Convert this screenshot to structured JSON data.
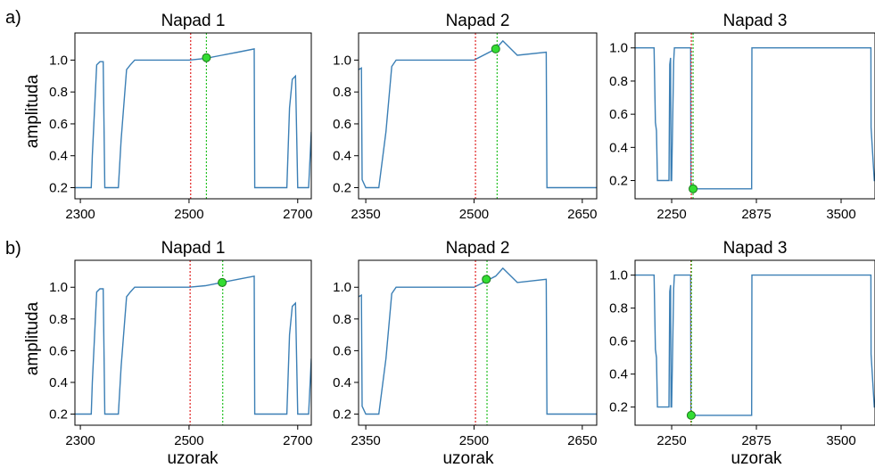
{
  "figure": {
    "row_labels": [
      "a)",
      "b)"
    ],
    "ylabel": "amplituda",
    "xlabel": "uzorak"
  },
  "colors": {
    "signal": "#3b7fb5",
    "onset_red": "#e02020",
    "detect_green": "#22c022",
    "marker_fill": "#33dd33",
    "marker_edge": "#1a7a1a"
  },
  "chart_data": [
    {
      "type": "line",
      "panel": "a-1",
      "title": "Napad 1",
      "xlim": [
        2290,
        2725
      ],
      "ylim": [
        0.13,
        1.17
      ],
      "xticks": [
        2300,
        2500,
        2700
      ],
      "yticks": [
        0.2,
        0.4,
        0.6,
        0.8,
        1.0
      ],
      "series": [
        {
          "x": [
            2290,
            2300,
            2320,
            2322,
            2330,
            2336,
            2342,
            2345,
            2350,
            2370,
            2375,
            2385,
            2392,
            2400,
            2450,
            2500,
            2530,
            2560,
            2590,
            2620,
            2621,
            2650,
            2680,
            2685,
            2690,
            2696,
            2700,
            2705,
            2720,
            2725
          ],
          "y": [
            0.2,
            0.2,
            0.2,
            0.4,
            0.97,
            0.99,
            0.99,
            0.2,
            0.2,
            0.2,
            0.5,
            0.94,
            0.97,
            1.0,
            1.0,
            1.0,
            1.01,
            1.03,
            1.05,
            1.07,
            0.2,
            0.2,
            0.2,
            0.7,
            0.88,
            0.9,
            0.2,
            0.2,
            0.2,
            0.55
          ]
        }
      ],
      "onset_line_x": 2503,
      "detection_line_x": 2532,
      "detection_point": [
        2532,
        1.015
      ]
    },
    {
      "type": "line",
      "panel": "a-2",
      "title": "Napad 2",
      "xlim": [
        2340,
        2670
      ],
      "ylim": [
        0.13,
        1.17
      ],
      "xticks": [
        2350,
        2500,
        2650
      ],
      "yticks": [
        0.2,
        0.4,
        0.6,
        0.8,
        1.0
      ],
      "series": [
        {
          "x": [
            2340,
            2344,
            2345,
            2350,
            2365,
            2368,
            2378,
            2386,
            2392,
            2450,
            2500,
            2530,
            2540,
            2560,
            2600,
            2601,
            2620,
            2670
          ],
          "y": [
            0.94,
            0.95,
            0.25,
            0.2,
            0.2,
            0.2,
            0.55,
            0.96,
            1.0,
            1.0,
            1.0,
            1.07,
            1.12,
            1.03,
            1.05,
            0.2,
            0.2,
            0.2
          ]
        }
      ],
      "onset_line_x": 2502,
      "detection_line_x": 2532,
      "detection_point": [
        2530,
        1.07
      ]
    },
    {
      "type": "line",
      "panel": "a-3",
      "title": "Napad 3",
      "xlim": [
        1980,
        3750
      ],
      "ylim": [
        0.09,
        1.09
      ],
      "xticks": [
        2250,
        2875,
        3500
      ],
      "yticks": [
        0.2,
        0.4,
        0.6,
        0.8,
        1.0
      ],
      "series": [
        {
          "x": [
            1980,
            2120,
            2130,
            2138,
            2145,
            2150,
            2200,
            2230,
            2236,
            2242,
            2245,
            2250,
            2265,
            2270,
            2390,
            2392,
            2400,
            2840,
            2842,
            3720,
            3721,
            3745,
            3750
          ],
          "y": [
            1.0,
            1.0,
            0.55,
            0.5,
            0.2,
            0.2,
            0.2,
            0.2,
            0.9,
            0.94,
            0.2,
            0.2,
            0.92,
            1.0,
            1.0,
            0.15,
            0.15,
            0.15,
            1.0,
            1.0,
            0.52,
            0.2,
            0.2
          ]
        }
      ],
      "onset_line_x": 2395,
      "detection_line_x": 2408,
      "detection_point": [
        2408,
        0.15
      ]
    },
    {
      "type": "line",
      "panel": "b-1",
      "title": "Napad 1",
      "xlim": [
        2290,
        2725
      ],
      "ylim": [
        0.13,
        1.17
      ],
      "xticks": [
        2300,
        2500,
        2700
      ],
      "yticks": [
        0.2,
        0.4,
        0.6,
        0.8,
        1.0
      ],
      "series": [
        {
          "x": [
            2290,
            2300,
            2320,
            2322,
            2330,
            2336,
            2342,
            2345,
            2350,
            2370,
            2375,
            2385,
            2392,
            2400,
            2450,
            2500,
            2530,
            2560,
            2590,
            2620,
            2621,
            2650,
            2680,
            2685,
            2690,
            2696,
            2700,
            2705,
            2720,
            2725
          ],
          "y": [
            0.2,
            0.2,
            0.2,
            0.4,
            0.97,
            0.99,
            0.99,
            0.2,
            0.2,
            0.2,
            0.5,
            0.94,
            0.97,
            1.0,
            1.0,
            1.0,
            1.01,
            1.03,
            1.05,
            1.07,
            0.2,
            0.2,
            0.2,
            0.7,
            0.88,
            0.9,
            0.2,
            0.2,
            0.2,
            0.55
          ]
        }
      ],
      "onset_line_x": 2502,
      "detection_line_x": 2562,
      "detection_point": [
        2561,
        1.03
      ]
    },
    {
      "type": "line",
      "panel": "b-2",
      "title": "Napad 2",
      "xlim": [
        2340,
        2670
      ],
      "ylim": [
        0.13,
        1.17
      ],
      "xticks": [
        2350,
        2500,
        2650
      ],
      "yticks": [
        0.2,
        0.4,
        0.6,
        0.8,
        1.0
      ],
      "series": [
        {
          "x": [
            2340,
            2344,
            2345,
            2350,
            2365,
            2368,
            2378,
            2386,
            2392,
            2450,
            2500,
            2530,
            2540,
            2560,
            2600,
            2601,
            2620,
            2670
          ],
          "y": [
            0.94,
            0.95,
            0.25,
            0.2,
            0.2,
            0.2,
            0.55,
            0.96,
            1.0,
            1.0,
            1.0,
            1.07,
            1.12,
            1.03,
            1.05,
            0.2,
            0.2,
            0.2
          ]
        }
      ],
      "onset_line_x": 2502,
      "detection_line_x": 2518,
      "detection_point": [
        2517,
        1.05
      ]
    },
    {
      "type": "line",
      "panel": "b-3",
      "title": "Napad 3",
      "xlim": [
        1980,
        3750
      ],
      "ylim": [
        0.09,
        1.09
      ],
      "xticks": [
        2250,
        2875,
        3500
      ],
      "yticks": [
        0.2,
        0.4,
        0.6,
        0.8,
        1.0
      ],
      "series": [
        {
          "x": [
            1980,
            2120,
            2130,
            2138,
            2145,
            2150,
            2200,
            2230,
            2236,
            2242,
            2245,
            2250,
            2265,
            2270,
            2390,
            2392,
            2400,
            2840,
            2842,
            3720,
            3721,
            3745,
            3750
          ],
          "y": [
            1.0,
            1.0,
            0.55,
            0.5,
            0.2,
            0.2,
            0.2,
            0.2,
            0.9,
            0.94,
            0.2,
            0.2,
            0.92,
            1.0,
            1.0,
            0.15,
            0.15,
            0.15,
            1.0,
            1.0,
            0.52,
            0.2,
            0.2
          ]
        }
      ],
      "onset_line_x": 2392,
      "detection_line_x": 2396,
      "detection_point": [
        2394,
        0.15
      ]
    }
  ]
}
